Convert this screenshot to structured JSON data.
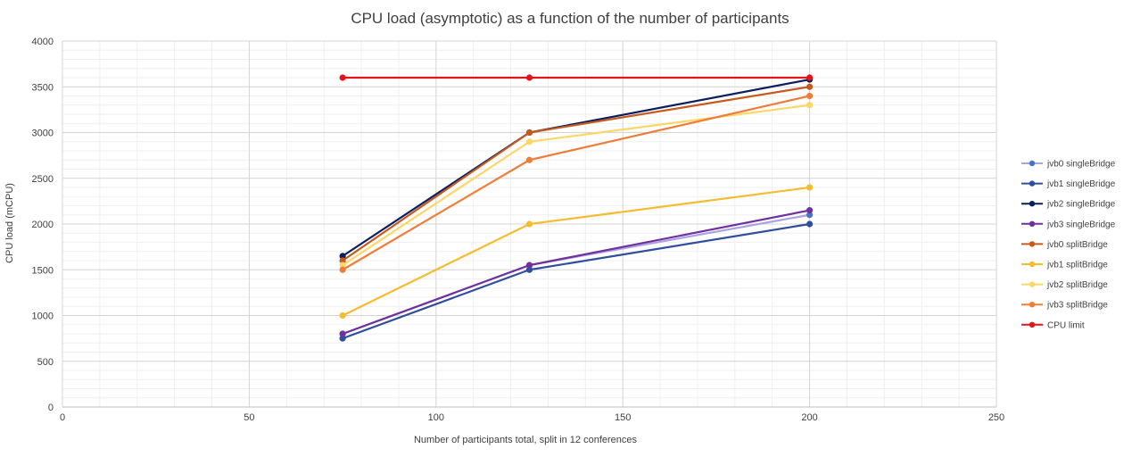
{
  "chart_data": {
    "type": "line",
    "title": "CPU load (asymptotic) as a function of the number of participants",
    "xlabel": "Number of participants total, split in 12 conferences",
    "ylabel": "CPU load (mCPU)",
    "xlim": [
      0,
      250
    ],
    "ylim": [
      0,
      4000
    ],
    "xticks": [
      0,
      50,
      100,
      150,
      200,
      250
    ],
    "yticks": [
      0,
      500,
      1000,
      1500,
      2000,
      2500,
      3000,
      3500,
      4000
    ],
    "x_minor_step": 10,
    "y_minor_step": 100,
    "grid": true,
    "legend_position": "right",
    "x": [
      75,
      125,
      200
    ],
    "series": [
      {
        "name": "jvb0 singleBridge",
        "color": "#4a72c4",
        "line_color": "#a9a3e0",
        "values": [
          800,
          1550,
          2100
        ]
      },
      {
        "name": "jvb1 singleBridge",
        "color": "#2f4f9c",
        "line_color": "#2f4f9c",
        "values": [
          750,
          1500,
          2000
        ]
      },
      {
        "name": "jvb2 singleBridge",
        "color": "#0b1f5c",
        "line_color": "#0b1f5c",
        "values": [
          1650,
          3000,
          3580
        ]
      },
      {
        "name": "jvb3 singleBridge",
        "color": "#7030a0",
        "line_color": "#7030a0",
        "values": [
          800,
          1550,
          2150
        ]
      },
      {
        "name": "jvb0 splitBridge",
        "color": "#c55a1e",
        "line_color": "#c55a1e",
        "values": [
          1600,
          3000,
          3500
        ]
      },
      {
        "name": "jvb1 splitBridge",
        "color": "#f6bc2f",
        "line_color": "#f6bc2f",
        "values": [
          1000,
          2000,
          2400
        ]
      },
      {
        "name": "jvb2 splitBridge",
        "color": "#fad768",
        "line_color": "#fad768",
        "values": [
          1550,
          2900,
          3300
        ]
      },
      {
        "name": "jvb3 splitBridge",
        "color": "#ee7d3a",
        "line_color": "#ee7d3a",
        "values": [
          1500,
          2700,
          3400
        ]
      },
      {
        "name": "CPU limit",
        "color": "#e4141b",
        "line_color": "#e4141b",
        "values": [
          3600,
          3600,
          3600
        ]
      }
    ]
  }
}
